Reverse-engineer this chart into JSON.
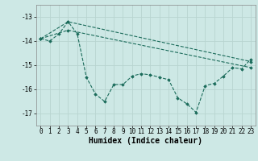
{
  "xlabel": "Humidex (Indice chaleur)",
  "ylabel": "",
  "background_color": "#cde8e5",
  "grid_color": "#b8d4d0",
  "line_color": "#1a6b5a",
  "xlim": [
    -0.5,
    23.5
  ],
  "ylim": [
    -17.5,
    -12.5
  ],
  "yticks": [
    -17,
    -16,
    -15,
    -14,
    -13
  ],
  "xticks": [
    0,
    1,
    2,
    3,
    4,
    5,
    6,
    7,
    8,
    9,
    10,
    11,
    12,
    13,
    14,
    15,
    16,
    17,
    18,
    19,
    20,
    21,
    22,
    23
  ],
  "line1_x": [
    0,
    1,
    2,
    3,
    4,
    5,
    6,
    7,
    8,
    9,
    10,
    11,
    12,
    13,
    14,
    15,
    16,
    17,
    18,
    19,
    20,
    21,
    22,
    23
  ],
  "line1_y": [
    -13.9,
    -14.0,
    -13.7,
    -13.2,
    -13.7,
    -15.5,
    -16.2,
    -16.5,
    -15.8,
    -15.8,
    -15.45,
    -15.35,
    -15.4,
    -15.5,
    -15.6,
    -16.35,
    -16.6,
    -16.95,
    -15.85,
    -15.75,
    -15.45,
    -15.1,
    -15.15,
    -14.75
  ],
  "line2_x": [
    0,
    3,
    23
  ],
  "line2_y": [
    -13.9,
    -13.2,
    -14.85
  ],
  "line3_x": [
    0,
    3,
    23
  ],
  "line3_y": [
    -13.9,
    -13.55,
    -15.1
  ],
  "figsize": [
    3.2,
    2.0
  ],
  "dpi": 100,
  "xlabel_fontsize": 7,
  "tick_fontsize": 5.5
}
